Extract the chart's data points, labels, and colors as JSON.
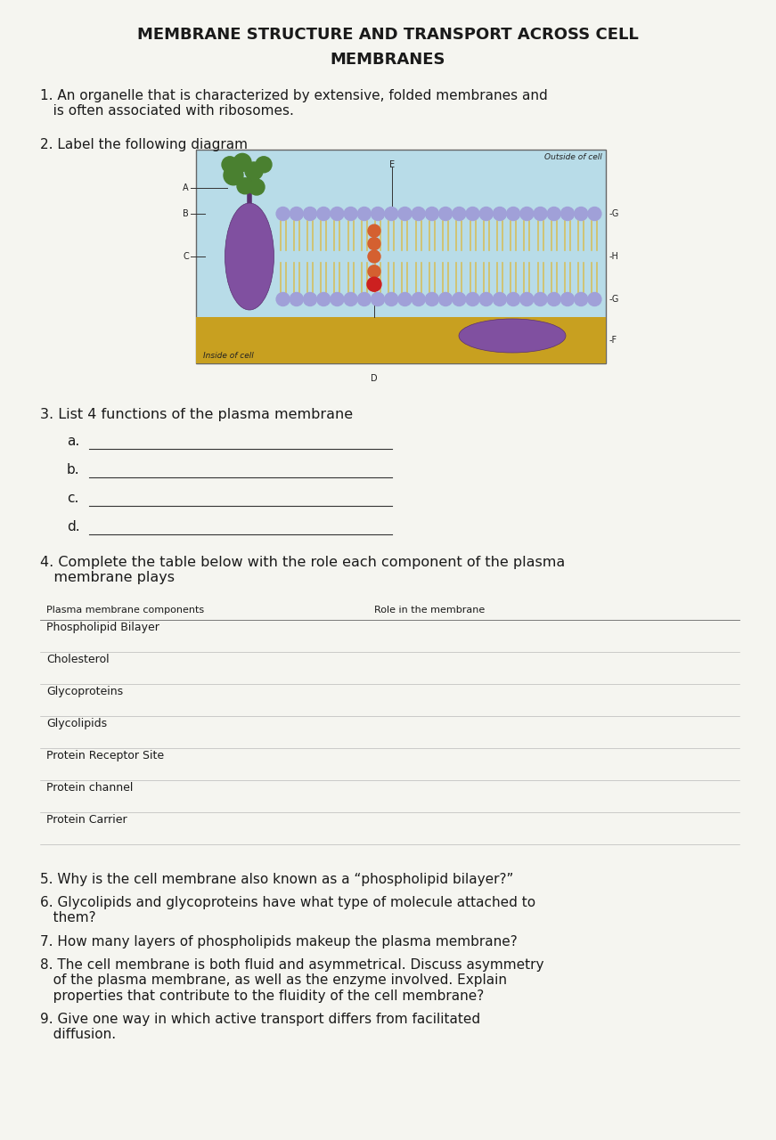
{
  "title_line1": "MEMBRANE STRUCTURE AND TRANSPORT ACROSS CELL",
  "title_line2": "MEMBRANES",
  "bg_color": "#f5f5f0",
  "text_color": "#1a1a1a",
  "q1": "1. An organelle that is characterized by extensive, folded membranes and\n   is often associated with ribosomes.",
  "q2": "2. Label the following diagram",
  "q3_text": "3. List 4 functions of the plasma membrane",
  "q3_items": [
    "a.",
    "b.",
    "c.",
    "d."
  ],
  "q4_text": "4. Complete the table below with the role each component of the plasma\n   membrane plays",
  "table_header_col1": "Plasma membrane components",
  "table_header_col2": "Role in the membrane",
  "table_rows": [
    "Phospholipid Bilayer",
    "Cholesterol",
    "Glycoproteins",
    "Glycolipids",
    "Protein Receptor Site",
    "Protein channel",
    "Protein Carrier"
  ],
  "bottom_questions": [
    "5. Why is the cell membrane also known as a “phospholipid bilayer?”",
    "6. Glycolipids and glycoproteins have what type of molecule attached to\n   them?",
    "7. How many layers of phospholipids makeup the plasma membrane?",
    "8. The cell membrane is both fluid and asymmetrical. Discuss asymmetry\n   of the plasma membrane, as well as the enzyme involved. Explain\n   properties that contribute to the fluidity of the cell membrane?",
    "9. Give one way in which active transport differs from facilitated\n   diffusion."
  ],
  "diagram": {
    "outside_label": "Outside of cell",
    "inside_label": "Inside of cell",
    "bg_color": "#b8dce8",
    "sand_color": "#c8a020",
    "bilayer_head_color": "#a0a0d8",
    "bilayer_tail_color": "#d4c060",
    "protein_color": "#8050a0",
    "green_color": "#4a8030",
    "red_color": "#cc2020",
    "orange_color": "#d46030"
  }
}
